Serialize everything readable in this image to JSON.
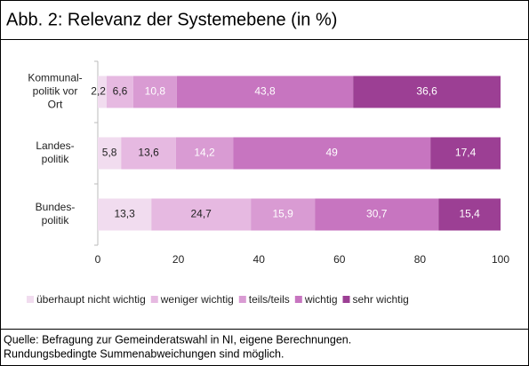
{
  "chart_data": {
    "type": "stacked-barh",
    "title": "Abb. 2: Relevanz der Systemebene (in %)",
    "categories": [
      "Kommunal-\npolitik vor\nOrt",
      "Landes-\npolitik",
      "Bundes-\npolitik"
    ],
    "series": [
      {
        "name": "überhaupt nicht wichtig",
        "color": "#f1dcef",
        "values": [
          2.2,
          5.8,
          13.3
        ],
        "value_labels": [
          "2,2",
          "5,8",
          "13,3"
        ]
      },
      {
        "name": "weniger wichtig",
        "color": "#e6b9e1",
        "values": [
          6.6,
          13.6,
          24.7
        ],
        "value_labels": [
          "6,6",
          "13,6",
          "24,7"
        ]
      },
      {
        "name": "teils/teils",
        "color": "#d99bd3",
        "values": [
          10.8,
          14.2,
          15.9
        ],
        "value_labels": [
          "10,8",
          "14,2",
          "15,9"
        ]
      },
      {
        "name": "wichtig",
        "color": "#c775c0",
        "values": [
          43.8,
          49,
          30.7
        ],
        "value_labels": [
          "43,8",
          "49",
          "30,7"
        ]
      },
      {
        "name": "sehr wichtig",
        "color": "#9c3f94",
        "values": [
          36.6,
          17.4,
          15.4
        ],
        "value_labels": [
          "36,6",
          "17,4",
          "15,4"
        ]
      }
    ],
    "xlim": [
      0,
      100
    ],
    "xticks": [
      0,
      20,
      40,
      60,
      80,
      100
    ],
    "source": [
      "Quelle: Befragung zur Gemeinderatswahl in NI, eigene Berechnungen.",
      "Rundungsbedingte Summenabweichungen sind möglich."
    ]
  }
}
